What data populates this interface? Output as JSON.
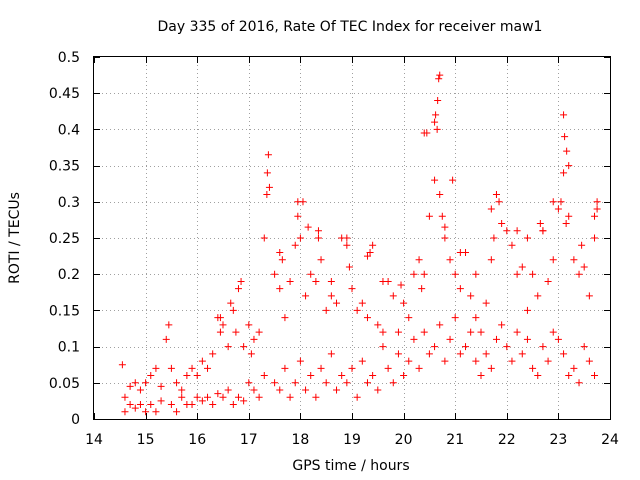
{
  "chart_data": {
    "type": "scatter",
    "title": "Day 335 of 2016, Rate Of TEC Index for receiver maw1",
    "xlabel": "GPS time / hours",
    "ylabel": "ROTI / TECUs",
    "xlim": [
      14,
      24
    ],
    "ylim": [
      0,
      0.5
    ],
    "xticks": [
      "14",
      "15",
      "16",
      "17",
      "18",
      "19",
      "20",
      "21",
      "22",
      "23",
      "24"
    ],
    "yticks": [
      "0",
      "0.05",
      "0.1",
      "0.15",
      "0.2",
      "0.25",
      "0.3",
      "0.35",
      "0.4",
      "0.45",
      "0.5"
    ],
    "grid": true,
    "marker": "+",
    "marker_color": "#ff0000",
    "series": [
      {
        "name": "ROTI",
        "x": [
          14.55,
          14.6,
          14.7,
          14.8,
          14.9,
          15.0,
          15.1,
          15.2,
          15.3,
          15.4,
          15.45,
          15.5,
          15.6,
          15.7,
          15.8,
          15.9,
          16.0,
          16.1,
          16.2,
          16.3,
          16.4,
          16.45,
          16.5,
          16.6,
          16.7,
          16.8,
          16.85,
          16.9,
          17.0,
          17.05,
          17.1,
          17.2,
          17.3,
          17.35,
          17.4,
          17.5,
          17.6,
          17.65,
          17.7,
          17.8,
          17.9,
          17.95,
          18.0,
          18.05,
          18.1,
          18.2,
          18.3,
          18.35,
          18.4,
          18.5,
          18.6,
          18.7,
          18.8,
          18.9,
          18.95,
          19.0,
          19.1,
          19.2,
          19.3,
          19.35,
          19.4,
          19.5,
          19.6,
          19.7,
          19.8,
          19.9,
          20.0,
          20.1,
          20.2,
          20.3,
          20.35,
          20.4,
          20.5,
          20.6,
          20.65,
          20.7,
          20.75,
          20.8,
          20.9,
          21.0,
          21.1,
          21.2,
          21.3,
          21.4,
          21.5,
          21.6,
          21.7,
          21.75,
          21.8,
          21.9,
          22.0,
          22.1,
          22.2,
          22.3,
          22.4,
          22.5,
          22.6,
          22.7,
          22.8,
          22.9,
          23.0,
          23.05,
          23.1,
          23.15,
          23.2,
          23.3,
          23.4,
          23.5,
          23.6,
          23.7,
          23.75,
          14.6,
          14.7,
          14.8,
          14.9,
          15.0,
          15.1,
          15.2,
          15.3,
          15.5,
          15.6,
          15.7,
          15.8,
          15.9,
          16.0,
          16.1,
          16.2,
          16.3,
          16.4,
          16.5,
          16.6,
          16.7,
          16.8,
          16.9,
          17.0,
          17.1,
          17.2,
          17.3,
          17.5,
          17.6,
          17.7,
          17.8,
          17.9,
          18.0,
          18.1,
          18.2,
          18.3,
          18.4,
          18.5,
          18.6,
          18.7,
          18.8,
          18.9,
          19.0,
          19.1,
          19.2,
          19.3,
          19.4,
          19.5,
          19.6,
          19.7,
          19.8,
          19.9,
          20.0,
          20.1,
          20.2,
          20.3,
          20.4,
          20.5,
          20.6,
          20.7,
          20.8,
          20.9,
          21.0,
          21.1,
          21.2,
          21.3,
          21.4,
          21.5,
          21.6,
          21.7,
          21.8,
          21.9,
          22.0,
          22.1,
          22.2,
          22.3,
          22.4,
          22.5,
          22.6,
          22.7,
          22.8,
          22.9,
          23.0,
          23.1,
          23.2,
          23.3,
          23.4,
          23.5,
          23.6,
          23.7,
          16.45,
          16.65,
          16.75,
          17.38,
          17.36,
          17.6,
          17.95,
          18.15,
          18.35,
          18.6,
          18.9,
          19.3,
          19.6,
          19.95,
          20.4,
          20.45,
          20.6,
          20.62,
          20.66,
          20.68,
          20.7,
          20.8,
          20.95,
          21.1,
          21.4,
          21.7,
          21.8,
          21.85,
          22.2,
          22.4,
          22.65,
          22.7,
          22.9,
          23.1,
          23.12,
          23.16,
          23.2,
          23.45,
          23.7,
          23.75
        ],
        "y": [
          0.075,
          0.03,
          0.045,
          0.05,
          0.04,
          0.05,
          0.06,
          0.07,
          0.045,
          0.11,
          0.13,
          0.07,
          0.05,
          0.04,
          0.06,
          0.07,
          0.06,
          0.08,
          0.07,
          0.09,
          0.14,
          0.12,
          0.13,
          0.1,
          0.15,
          0.18,
          0.19,
          0.1,
          0.13,
          0.09,
          0.11,
          0.12,
          0.25,
          0.31,
          0.32,
          0.2,
          0.18,
          0.22,
          0.14,
          0.19,
          0.24,
          0.28,
          0.25,
          0.3,
          0.17,
          0.2,
          0.19,
          0.26,
          0.22,
          0.15,
          0.17,
          0.16,
          0.25,
          0.24,
          0.21,
          0.18,
          0.15,
          0.16,
          0.14,
          0.23,
          0.24,
          0.13,
          0.12,
          0.19,
          0.17,
          0.12,
          0.16,
          0.14,
          0.2,
          0.22,
          0.18,
          0.2,
          0.28,
          0.33,
          0.4,
          0.31,
          0.28,
          0.25,
          0.22,
          0.2,
          0.18,
          0.23,
          0.17,
          0.14,
          0.12,
          0.16,
          0.22,
          0.25,
          0.31,
          0.27,
          0.26,
          0.24,
          0.2,
          0.21,
          0.15,
          0.2,
          0.17,
          0.26,
          0.19,
          0.22,
          0.29,
          0.3,
          0.34,
          0.27,
          0.28,
          0.22,
          0.2,
          0.21,
          0.17,
          0.28,
          0.29,
          0.01,
          0.02,
          0.015,
          0.02,
          0.01,
          0.02,
          0.01,
          0.025,
          0.02,
          0.01,
          0.03,
          0.02,
          0.02,
          0.03,
          0.025,
          0.03,
          0.02,
          0.035,
          0.03,
          0.04,
          0.02,
          0.03,
          0.025,
          0.05,
          0.04,
          0.03,
          0.06,
          0.05,
          0.04,
          0.07,
          0.03,
          0.05,
          0.08,
          0.04,
          0.06,
          0.03,
          0.07,
          0.05,
          0.09,
          0.04,
          0.06,
          0.05,
          0.07,
          0.03,
          0.08,
          0.05,
          0.06,
          0.04,
          0.1,
          0.07,
          0.05,
          0.09,
          0.06,
          0.08,
          0.11,
          0.07,
          0.12,
          0.09,
          0.1,
          0.13,
          0.08,
          0.11,
          0.14,
          0.09,
          0.1,
          0.12,
          0.08,
          0.06,
          0.09,
          0.07,
          0.11,
          0.13,
          0.1,
          0.08,
          0.12,
          0.09,
          0.11,
          0.07,
          0.06,
          0.1,
          0.08,
          0.12,
          0.11,
          0.09,
          0.06,
          0.07,
          0.05,
          0.1,
          0.08,
          0.06,
          0.14,
          0.16,
          0.12,
          0.365,
          0.34,
          0.23,
          0.3,
          0.265,
          0.25,
          0.19,
          0.25,
          0.225,
          0.19,
          0.185,
          0.395,
          0.395,
          0.41,
          0.42,
          0.44,
          0.47,
          0.475,
          0.265,
          0.33,
          0.23,
          0.2,
          0.29,
          0.31,
          0.3,
          0.26,
          0.25,
          0.27,
          0.26,
          0.3,
          0.42,
          0.39,
          0.37,
          0.35,
          0.24,
          0.25,
          0.3
        ]
      }
    ]
  }
}
